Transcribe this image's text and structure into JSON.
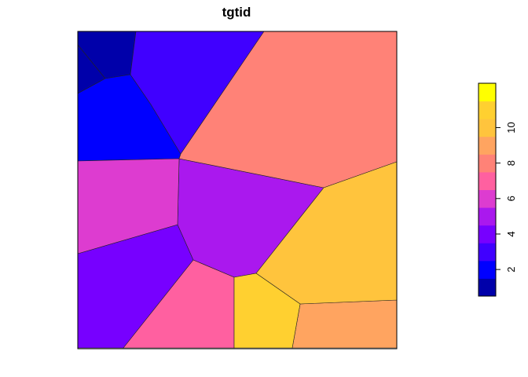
{
  "chart_data": {
    "type": "heatmap",
    "title": "tgtid",
    "xlabel": "",
    "ylabel": "",
    "value_range": [
      1,
      12
    ],
    "legend": {
      "position": "right",
      "orientation": "vertical",
      "ticks": [
        "2",
        "4",
        "6",
        "8",
        "10"
      ],
      "tick_values": [
        2,
        4,
        6,
        8,
        10
      ],
      "colors": [
        "#0000AA",
        "#0000FF",
        "#4000FF",
        "#7700FF",
        "#AA18EE",
        "#DD3CD0",
        "#FF60A0",
        "#FF8277",
        "#FFA460",
        "#FFC43D",
        "#FFD030",
        "#FFFF00"
      ]
    },
    "cells": [
      {
        "id": 1,
        "value": 1
      },
      {
        "id": 2,
        "value": 1
      },
      {
        "id": 3,
        "value": 2
      },
      {
        "id": 4,
        "value": 3
      },
      {
        "id": 5,
        "value": 4
      },
      {
        "id": 6,
        "value": 5
      },
      {
        "id": 7,
        "value": 6
      },
      {
        "id": 8,
        "value": 7
      },
      {
        "id": 9,
        "value": 8
      },
      {
        "id": 10,
        "value": 9
      },
      {
        "id": 11,
        "value": 10
      },
      {
        "id": 12,
        "value": 11
      }
    ]
  }
}
